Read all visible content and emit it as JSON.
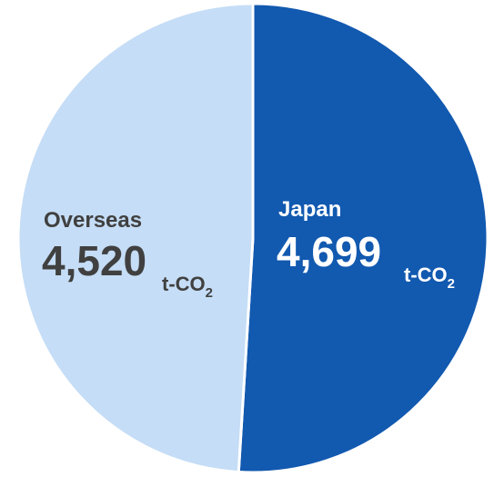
{
  "chart_data": {
    "type": "pie",
    "categories": [
      "Japan",
      "Overseas"
    ],
    "values": [
      4699,
      4520
    ],
    "value_labels": [
      "4,699",
      "4,520"
    ],
    "unit": "t-CO",
    "unit_subscript": "2",
    "colors": [
      "#1259b0",
      "#c5ddf6"
    ],
    "label_colors": [
      "#ffffff",
      "#404040"
    ],
    "start": "top, clockwise",
    "legend": "none"
  }
}
